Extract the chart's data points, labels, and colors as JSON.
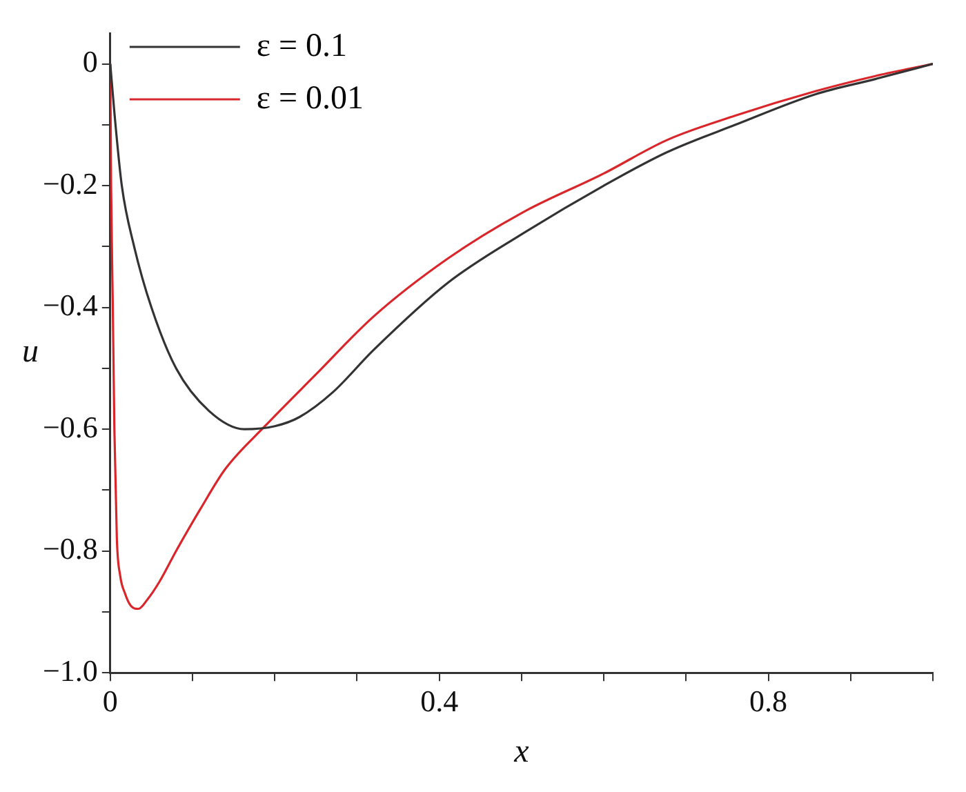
{
  "chart_data": {
    "type": "line",
    "xlabel": "x",
    "ylabel": "u",
    "xlim": [
      0,
      1
    ],
    "ylim": [
      -1,
      0.05
    ],
    "xticks": [
      0,
      {
        "value": 0.1,
        "label": null
      },
      {
        "value": 0.2,
        "label": null
      },
      {
        "value": 0.3,
        "label": null
      },
      0.4,
      {
        "value": 0.5,
        "label": null
      },
      {
        "value": 0.6,
        "label": null
      },
      {
        "value": 0.7,
        "label": null
      },
      0.8,
      {
        "value": 0.9,
        "label": null
      },
      {
        "value": 1,
        "label": null
      }
    ],
    "yticks": [
      {
        "value": -1,
        "label": "−1.0"
      },
      {
        "value": -0.9,
        "label": null
      },
      {
        "value": -0.8,
        "label": "−0.8"
      },
      {
        "value": -0.7,
        "label": null
      },
      {
        "value": -0.6,
        "label": "−0.6"
      },
      {
        "value": -0.5,
        "label": null
      },
      {
        "value": -0.4,
        "label": "−0.4"
      },
      {
        "value": -0.3,
        "label": null
      },
      {
        "value": -0.2,
        "label": "−0.2"
      },
      {
        "value": -0.1,
        "label": null
      },
      0
    ],
    "grid": false,
    "legend": "top left",
    "marker": "none",
    "line_style": "solid",
    "series": [
      {
        "name": "ε = 0.1",
        "color": "#333333",
        "x": [
          0,
          0.005,
          0.014,
          0.029,
          0.05,
          0.08,
          0.12,
          0.163,
          0.2,
          0.23,
          0.27,
          0.32,
          0.41,
          0.5,
          0.6,
          0.677,
          0.76,
          0.857,
          0.93,
          1
        ],
        "values": [
          0,
          -0.08,
          -0.2,
          -0.3,
          -0.4,
          -0.5,
          -0.57,
          -0.6,
          -0.595,
          -0.58,
          -0.54,
          -0.47,
          -0.36,
          -0.28,
          -0.2,
          -0.145,
          -0.1,
          -0.05,
          -0.025,
          0
        ]
      },
      {
        "name": "ε = 0.01",
        "color": "#d9262b",
        "x": [
          0,
          0.001,
          0.003,
          0.005,
          0.008,
          0.012,
          0.018,
          0.025,
          0.034,
          0.045,
          0.06,
          0.08,
          0.11,
          0.14,
          0.188,
          0.25,
          0.32,
          0.41,
          0.5,
          0.6,
          0.677,
          0.76,
          0.857,
          0.93,
          1
        ],
        "values": [
          0,
          -0.2,
          -0.39,
          -0.6,
          -0.78,
          -0.84,
          -0.87,
          -0.89,
          -0.895,
          -0.88,
          -0.85,
          -0.8,
          -0.73,
          -0.665,
          -0.595,
          -0.51,
          -0.415,
          -0.32,
          -0.245,
          -0.18,
          -0.125,
          -0.085,
          -0.045,
          -0.02,
          0
        ]
      }
    ]
  }
}
